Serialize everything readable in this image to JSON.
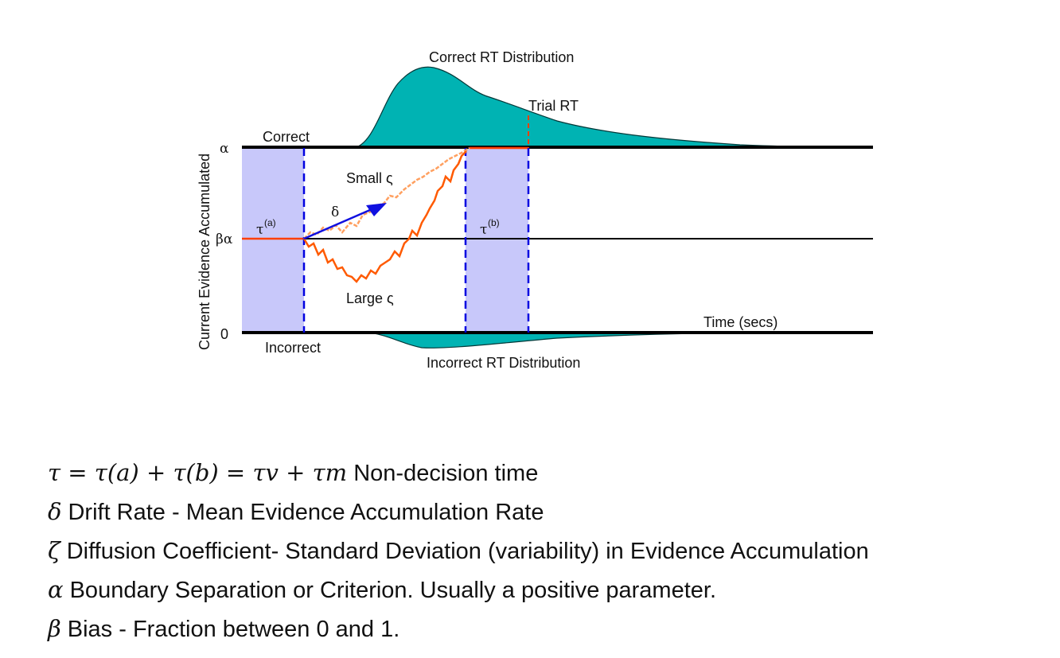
{
  "diagram": {
    "labels": {
      "correct_rt_distribution": "Correct RT Distribution",
      "trial_rt": "Trial RT",
      "correct": "Correct",
      "incorrect": "Incorrect",
      "incorrect_rt_distribution": "Incorrect RT Distribution",
      "time_axis": "Time (secs)",
      "y_axis": "Current Evidence Accumulated",
      "small_zeta": "Small ς",
      "large_zeta": "Large ς",
      "delta": "δ",
      "alpha": "α",
      "beta_alpha": "βα",
      "zero": "0",
      "tau": "τ",
      "tau_a_sup": "(a)",
      "tau_b_sup": "(b)"
    },
    "colors": {
      "distribution_fill": "#00b3b3",
      "shaded_region": "#c8c8fa",
      "dashed_line": "#0000e0",
      "large_path": "#ff5a00",
      "small_path": "#ffa060",
      "drift_arrow": "#1010e0",
      "boundary": "#000000",
      "start_segment": "#ff4000"
    }
  },
  "definitions": [
    {
      "math": "τ = τ(a) + τ(b) = τv + τm",
      "text": "Non-decision time"
    },
    {
      "symbol": "δ",
      "text": "Drift Rate - Mean Evidence Accumulation Rate"
    },
    {
      "symbol": "ζ",
      "text": "Diffusion Coefficient- Standard Deviation (variability) in Evidence Accumulation"
    },
    {
      "symbol": "α",
      "text": "Boundary Separation or Criterion. Usually a positive parameter."
    },
    {
      "symbol": "β",
      "text": "Bias - Fraction between 0 and 1."
    }
  ]
}
